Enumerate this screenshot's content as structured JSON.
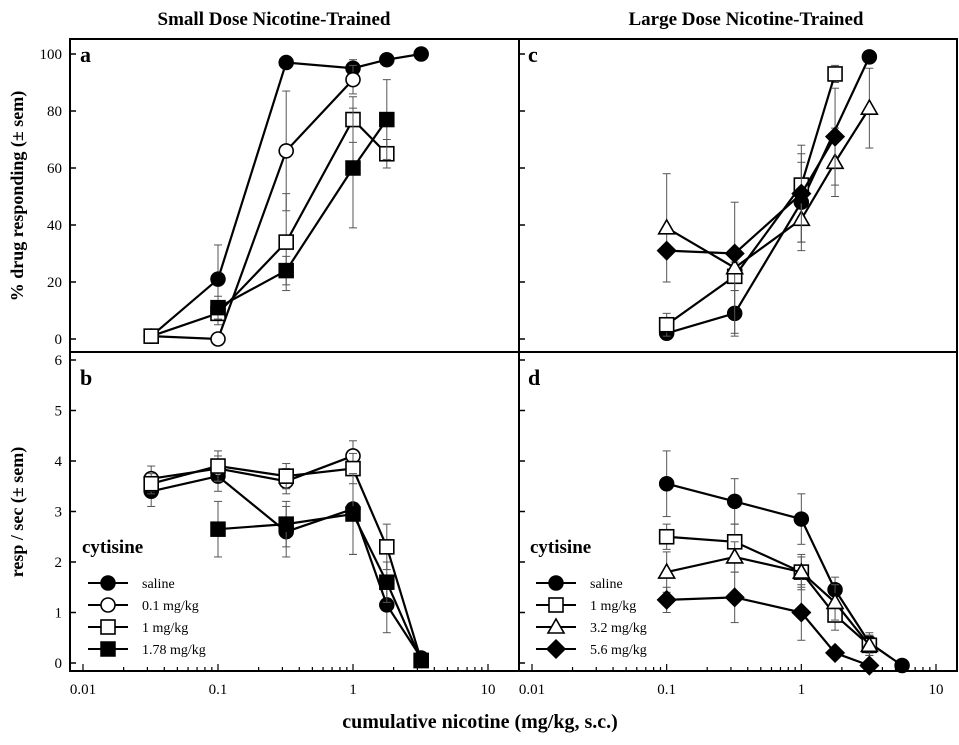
{
  "figure": {
    "left_title": "Small Dose Nicotine-Trained",
    "right_title": "Large Dose Nicotine-Trained",
    "top_ylabel": "% drug responding (± sem)",
    "bottom_ylabel": "resp / sec (± sem)",
    "xlabel": "cumulative nicotine (mg/kg, s.c.)"
  },
  "legend_left": {
    "title": "cytisine",
    "items": [
      {
        "label": "saline",
        "marker": "filled-circle"
      },
      {
        "label": "0.1 mg/kg",
        "marker": "open-circle"
      },
      {
        "label": "1 mg/kg",
        "marker": "open-square"
      },
      {
        "label": "1.78 mg/kg",
        "marker": "filled-square"
      }
    ]
  },
  "legend_right": {
    "title": "cytisine",
    "items": [
      {
        "label": "saline",
        "marker": "filled-circle"
      },
      {
        "label": "1 mg/kg",
        "marker": "open-square"
      },
      {
        "label": "3.2 mg/kg",
        "marker": "open-triangle"
      },
      {
        "label": "5.6 mg/kg",
        "marker": "filled-diamond"
      }
    ]
  },
  "chart_data": [
    {
      "panel": "a",
      "type": "line",
      "xscale": "log",
      "xlim": [
        0.01,
        10
      ],
      "ylim": [
        0,
        100
      ],
      "yticks": [
        0,
        20,
        40,
        60,
        80,
        100
      ],
      "series": [
        {
          "name": "saline",
          "marker": "filled-circle",
          "x": [
            0.032,
            0.1,
            0.32,
            1,
            1.78,
            3.2
          ],
          "y": [
            1,
            21,
            97,
            95,
            98,
            100
          ],
          "err": [
            2,
            12,
            0,
            3,
            2,
            0
          ]
        },
        {
          "name": "0.1 mg/kg",
          "marker": "open-circle",
          "x": [
            0.032,
            0.1,
            0.32,
            1
          ],
          "y": [
            1,
            0,
            66,
            91
          ],
          "err": [
            2,
            0,
            21,
            5
          ]
        },
        {
          "name": "1 mg/kg",
          "marker": "open-square",
          "x": [
            0.032,
            0.1,
            0.32,
            1,
            1.78
          ],
          "y": [
            1,
            9,
            34,
            77,
            65
          ],
          "err": [
            2,
            4,
            17,
            8,
            5
          ]
        },
        {
          "name": "1.78 mg/kg",
          "marker": "filled-square",
          "x": [
            0.1,
            0.32,
            1,
            1.78
          ],
          "y": [
            11,
            24,
            60,
            77
          ],
          "err": [
            4,
            5,
            21,
            14
          ]
        }
      ]
    },
    {
      "panel": "b",
      "type": "line",
      "xscale": "log",
      "xlim": [
        0.01,
        10
      ],
      "ylim": [
        0,
        6
      ],
      "yticks": [
        0,
        1,
        2,
        3,
        4,
        5,
        6
      ],
      "series": [
        {
          "name": "saline",
          "marker": "filled-circle",
          "x": [
            0.032,
            0.1,
            0.32,
            1,
            1.78,
            3.2
          ],
          "y": [
            3.4,
            3.7,
            2.6,
            3.05,
            1.15,
            0.1
          ],
          "err": [
            0.3,
            0.3,
            0.5,
            0.9,
            0.55,
            0.05
          ]
        },
        {
          "name": "0.1 mg/kg",
          "marker": "open-circle",
          "x": [
            0.032,
            0.1,
            0.32,
            1
          ],
          "y": [
            3.65,
            3.85,
            3.6,
            4.1
          ],
          "err": [
            0.25,
            0.25,
            0.25,
            0.3
          ]
        },
        {
          "name": "1 mg/kg",
          "marker": "open-square",
          "x": [
            0.032,
            0.1,
            0.32,
            1,
            1.78,
            3.2
          ],
          "y": [
            3.55,
            3.9,
            3.7,
            3.85,
            2.3,
            0.05
          ],
          "err": [
            0.2,
            0.3,
            0.25,
            0.3,
            0.45,
            0.05
          ]
        },
        {
          "name": "1.78 mg/kg",
          "marker": "filled-square",
          "x": [
            0.1,
            0.32,
            1,
            1.78,
            3.2
          ],
          "y": [
            2.65,
            2.75,
            2.95,
            1.6,
            0.05
          ],
          "err": [
            0.55,
            0.45,
            0.8,
            0.4,
            0.05
          ]
        }
      ]
    },
    {
      "panel": "c",
      "type": "line",
      "xscale": "log",
      "xlim": [
        0.01,
        10
      ],
      "ylim": [
        0,
        100
      ],
      "yticks": [
        0,
        20,
        40,
        60,
        80,
        100
      ],
      "series": [
        {
          "name": "saline",
          "marker": "filled-circle",
          "x": [
            0.1,
            0.32,
            1,
            3.2
          ],
          "y": [
            2,
            9,
            48,
            99
          ],
          "err": [
            0,
            8,
            14,
            0
          ]
        },
        {
          "name": "1 mg/kg",
          "marker": "open-square",
          "x": [
            0.1,
            0.32,
            1,
            1.78
          ],
          "y": [
            5,
            22,
            54,
            93
          ],
          "err": [
            4,
            5,
            11,
            3
          ]
        },
        {
          "name": "3.2 mg/kg",
          "marker": "open-triangle",
          "x": [
            0.1,
            0.32,
            1,
            1.78,
            3.2
          ],
          "y": [
            39,
            25,
            42,
            62,
            81
          ],
          "err": [
            19,
            23,
            11,
            12,
            14
          ]
        },
        {
          "name": "5.6 mg/kg",
          "marker": "filled-diamond",
          "x": [
            0.1,
            0.32,
            1,
            1.78
          ],
          "y": [
            31,
            30,
            51,
            71
          ],
          "err": [
            0,
            0,
            17,
            17
          ]
        }
      ]
    },
    {
      "panel": "d",
      "type": "line",
      "xscale": "log",
      "xlim": [
        0.01,
        10
      ],
      "ylim": [
        0,
        6
      ],
      "yticks": [
        0,
        1,
        2,
        3,
        4,
        5,
        6
      ],
      "series": [
        {
          "name": "saline",
          "marker": "filled-circle",
          "x": [
            0.1,
            0.32,
            1,
            1.78,
            3.2,
            5.6
          ],
          "y": [
            3.55,
            3.2,
            2.85,
            1.45,
            0.4,
            -0.05
          ],
          "err": [
            0.65,
            0.45,
            0.5,
            0.25,
            0.2,
            0
          ]
        },
        {
          "name": "1 mg/kg",
          "marker": "open-square",
          "x": [
            0.1,
            0.32,
            1,
            1.78,
            3.2
          ],
          "y": [
            2.5,
            2.4,
            1.8,
            0.95,
            0.35
          ],
          "err": [
            0.25,
            0.35,
            0.35,
            0.3,
            0.2
          ]
        },
        {
          "name": "3.2 mg/kg",
          "marker": "open-triangle",
          "x": [
            0.1,
            0.32,
            1,
            1.78,
            3.2
          ],
          "y": [
            1.8,
            2.1,
            1.8,
            1.2,
            0.35
          ],
          "err": [
            0.4,
            0.3,
            0.3,
            0.35,
            0.2
          ]
        },
        {
          "name": "5.6 mg/kg",
          "marker": "filled-diamond",
          "x": [
            0.1,
            0.32,
            1,
            1.78,
            3.2
          ],
          "y": [
            1.25,
            1.3,
            1.0,
            0.2,
            -0.05
          ],
          "err": [
            0.25,
            0.5,
            0.55,
            0.1,
            0.05
          ]
        }
      ]
    }
  ],
  "x_ticks": [
    {
      "value": 0.01,
      "label": "0.01"
    },
    {
      "value": 0.1,
      "label": "0.1"
    },
    {
      "value": 1,
      "label": "1"
    },
    {
      "value": 10,
      "label": "10"
    }
  ]
}
